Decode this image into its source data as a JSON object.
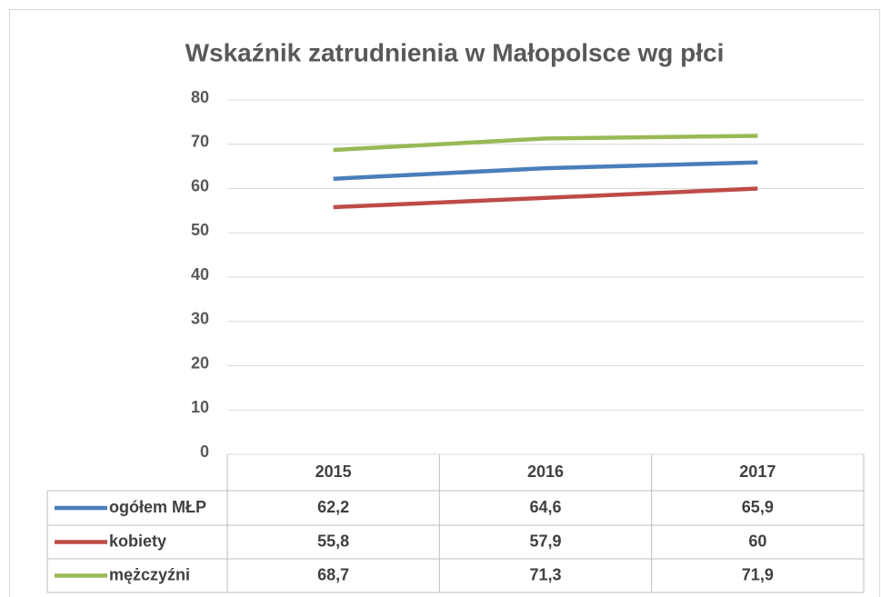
{
  "chart_data": {
    "type": "line",
    "title": "Wskaźnik zatrudnienia w Małopolsce wg płci",
    "categories": [
      "2015",
      "2016",
      "2017"
    ],
    "series": [
      {
        "name": "ogółem MŁP",
        "color": "#4a7ebb",
        "values": [
          62.2,
          64.6,
          65.9
        ],
        "value_labels": [
          "62,2",
          "64,6",
          "65,9"
        ]
      },
      {
        "name": "kobiety",
        "color": "#be4b48",
        "values": [
          55.8,
          57.9,
          60
        ],
        "value_labels": [
          "55,8",
          "57,9",
          "60"
        ]
      },
      {
        "name": "mężczyźni",
        "color": "#98b954",
        "values": [
          68.7,
          71.3,
          71.9
        ],
        "value_labels": [
          "68,7",
          "71,3",
          "71,9"
        ]
      }
    ],
    "ylim": [
      0,
      80
    ],
    "yticks": [
      0,
      10,
      20,
      30,
      40,
      50,
      60,
      70,
      80
    ],
    "grid": true,
    "data_table": true
  }
}
